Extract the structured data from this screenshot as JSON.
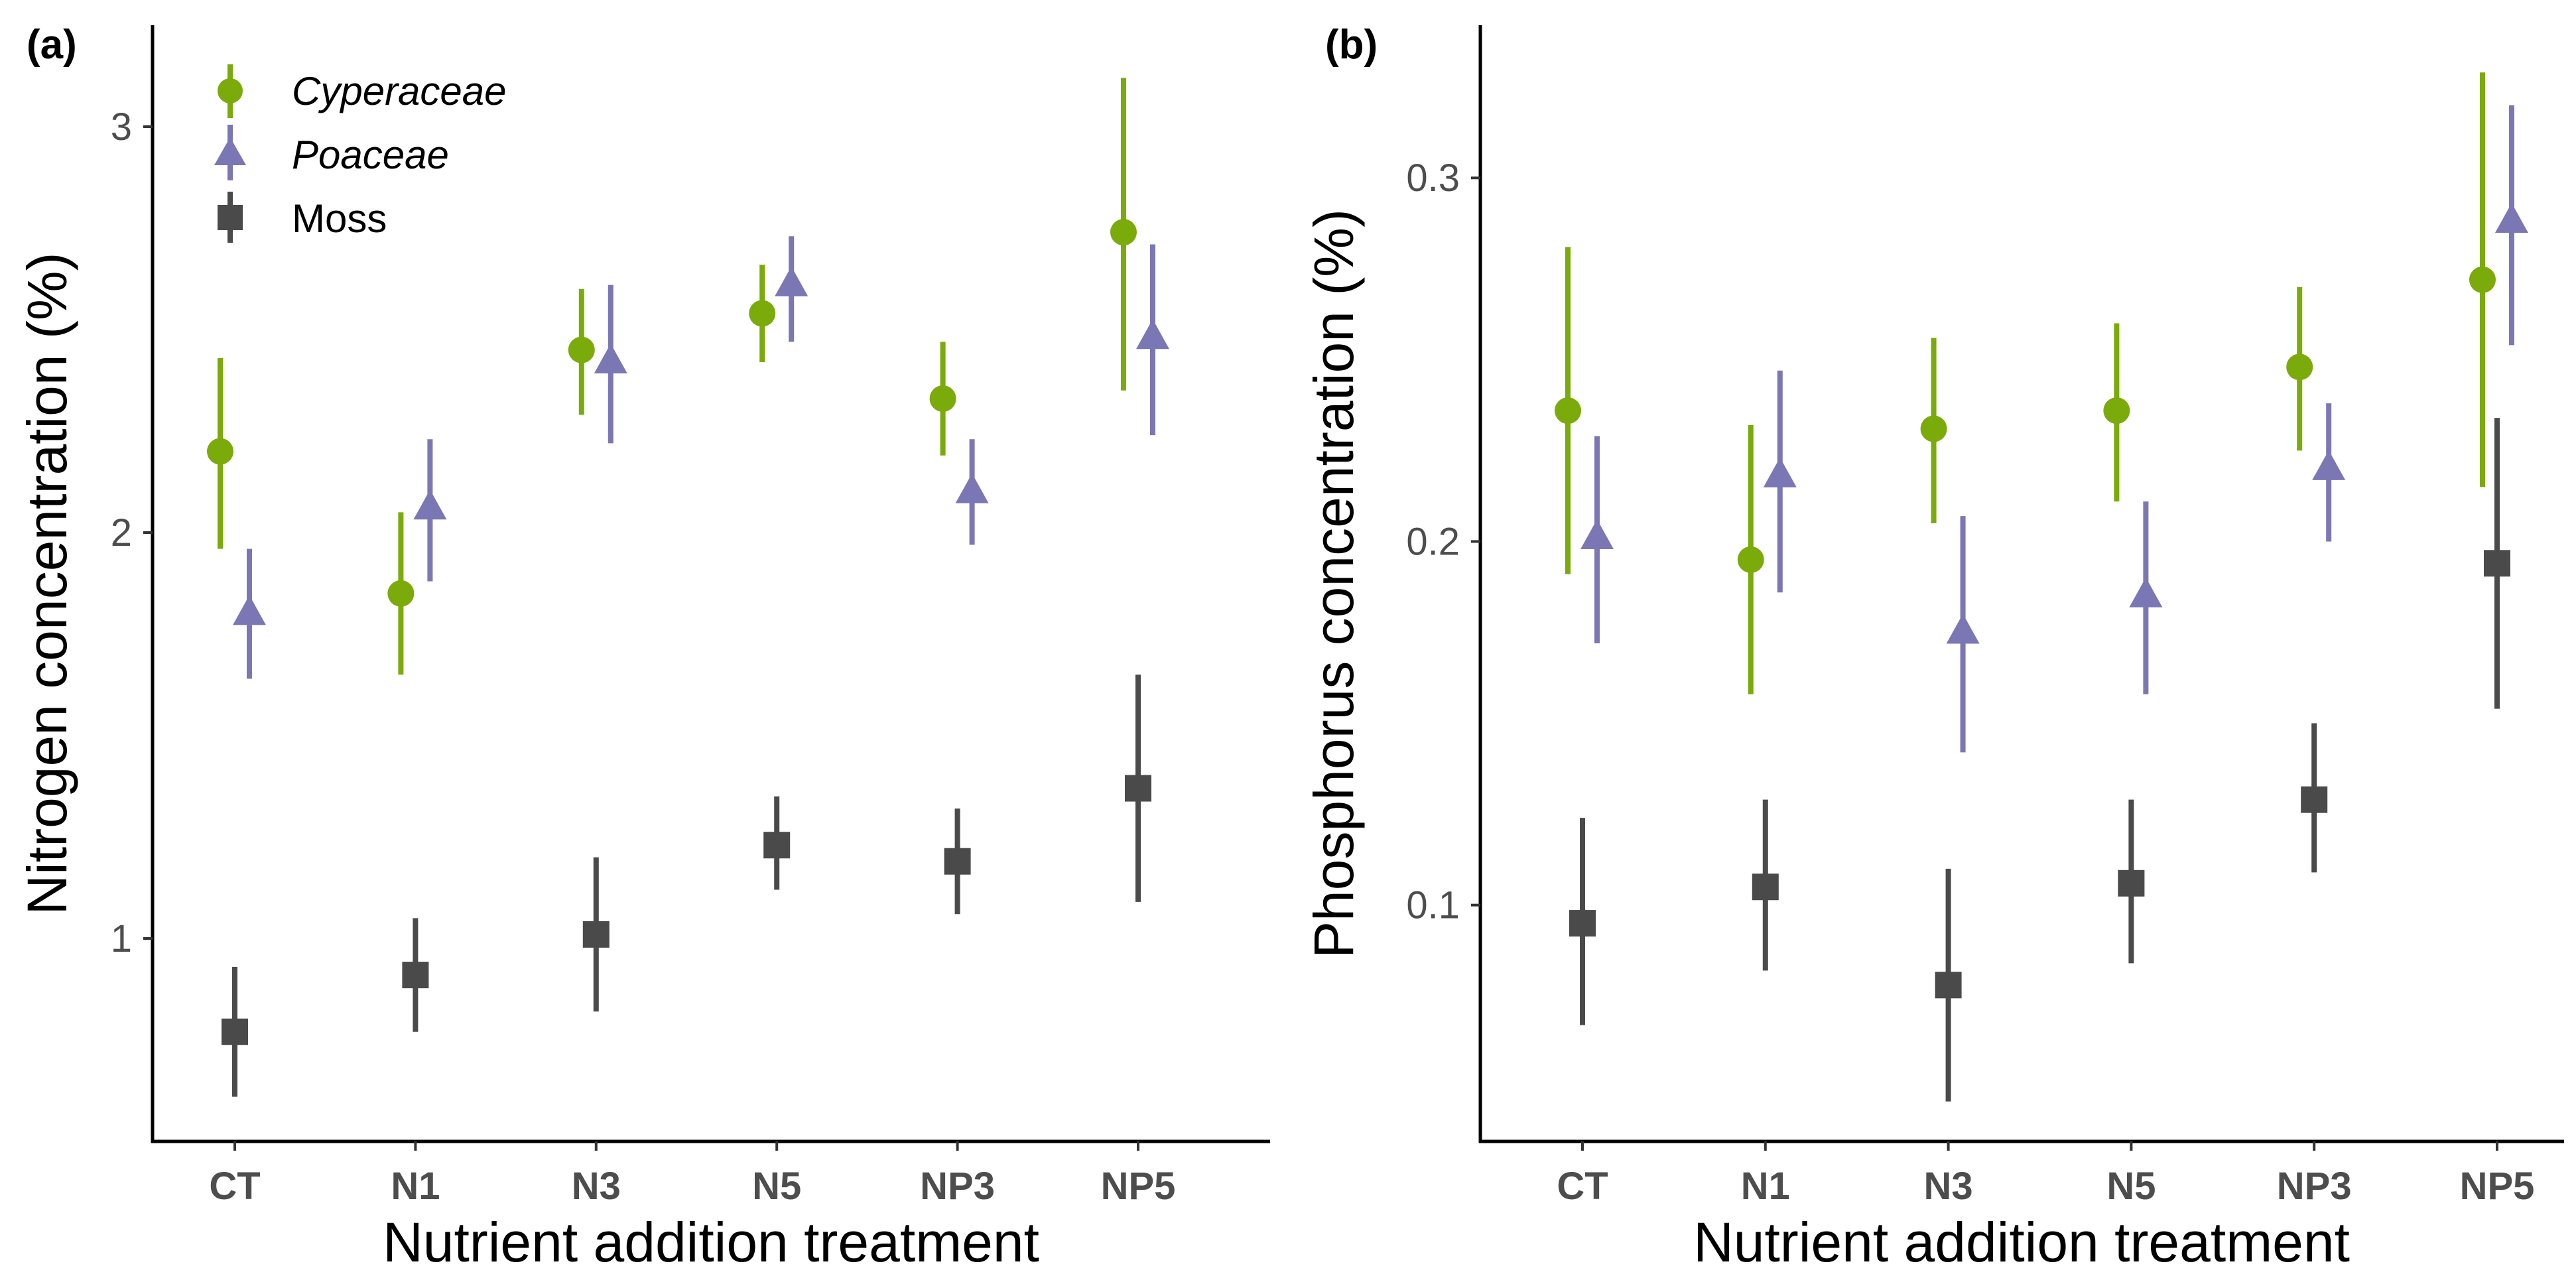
{
  "chart_data": [
    {
      "type": "scatter",
      "panel_label": "(a)",
      "xlabel": "Nutrient addition treatment",
      "ylabel": "Nitrogen concentration (%)",
      "categories": [
        "CT",
        "N1",
        "N3",
        "N5",
        "NP3",
        "NP5"
      ],
      "ylim": [
        0.5,
        3.25
      ],
      "yticks": [
        1,
        2,
        3
      ],
      "yticklabels": [
        "1",
        "2",
        "3"
      ],
      "legend": {
        "position": "top-left",
        "entries": [
          "Cyperaceae",
          "Poaceae",
          "Moss"
        ]
      },
      "series": [
        {
          "name": "Cyperaceae",
          "marker": "circle",
          "color": "#7aab0a",
          "italic": true,
          "values": [
            2.2,
            1.85,
            2.45,
            2.54,
            2.33,
            2.74
          ],
          "lower": [
            1.96,
            1.65,
            2.29,
            2.42,
            2.19,
            2.35
          ],
          "upper": [
            2.43,
            2.05,
            2.6,
            2.66,
            2.47,
            3.12
          ]
        },
        {
          "name": "Poaceae",
          "marker": "triangle",
          "color": "#7b77b5",
          "italic": true,
          "values": [
            1.8,
            2.06,
            2.42,
            2.61,
            2.1,
            2.48
          ],
          "lower": [
            1.64,
            1.88,
            2.22,
            2.47,
            1.97,
            2.24
          ],
          "upper": [
            1.96,
            2.23,
            2.61,
            2.73,
            2.23,
            2.71
          ]
        },
        {
          "name": "Moss",
          "marker": "square",
          "color": "#4a4a4a",
          "italic": false,
          "values": [
            0.77,
            0.91,
            1.01,
            1.23,
            1.19,
            1.37
          ],
          "lower": [
            0.61,
            0.77,
            0.82,
            1.12,
            1.06,
            1.09
          ],
          "upper": [
            0.93,
            1.05,
            1.2,
            1.35,
            1.32,
            1.65
          ]
        }
      ]
    },
    {
      "type": "scatter",
      "panel_label": "(b)",
      "xlabel": "Nutrient addition treatment",
      "ylabel": "Phosphorus concentration (%)",
      "categories": [
        "CT",
        "N1",
        "N3",
        "N5",
        "NP3",
        "NP5"
      ],
      "ylim": [
        0.035,
        0.342
      ],
      "yticks": [
        0.1,
        0.2,
        0.3
      ],
      "yticklabels": [
        "0.1",
        "0.2",
        "0.3"
      ],
      "series": [
        {
          "name": "Cyperaceae",
          "marker": "circle",
          "color": "#7aab0a",
          "values": [
            0.236,
            0.195,
            0.231,
            0.236,
            0.248,
            0.272
          ],
          "lower": [
            0.191,
            0.158,
            0.205,
            0.211,
            0.225,
            0.215
          ],
          "upper": [
            0.281,
            0.232,
            0.256,
            0.26,
            0.27,
            0.329
          ]
        },
        {
          "name": "Poaceae",
          "marker": "triangle",
          "color": "#7b77b5",
          "values": [
            0.201,
            0.218,
            0.175,
            0.185,
            0.22,
            0.288
          ],
          "lower": [
            0.172,
            0.186,
            0.142,
            0.158,
            0.2,
            0.254
          ],
          "upper": [
            0.229,
            0.247,
            0.207,
            0.211,
            0.238,
            0.32
          ]
        },
        {
          "name": "Moss",
          "marker": "square",
          "color": "#4a4a4a",
          "values": [
            0.095,
            0.105,
            0.078,
            0.106,
            0.129,
            0.194
          ],
          "lower": [
            0.067,
            0.082,
            0.046,
            0.084,
            0.109,
            0.154
          ],
          "upper": [
            0.124,
            0.129,
            0.11,
            0.129,
            0.15,
            0.234
          ]
        }
      ]
    }
  ]
}
